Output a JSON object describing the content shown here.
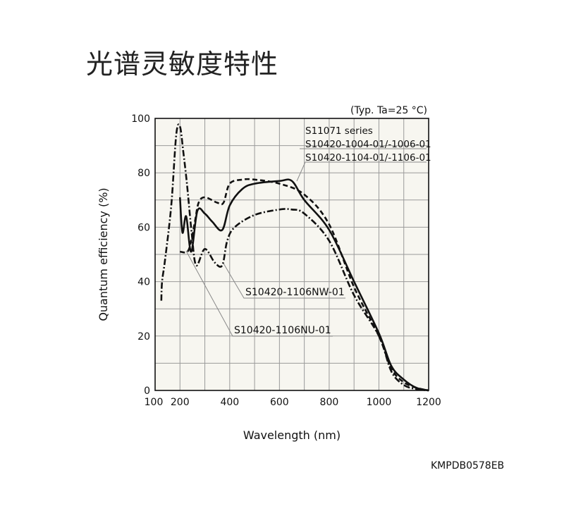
{
  "title": "光谱灵敏度特性",
  "figure_code": "KMPDB0578EB",
  "chart_data": {
    "type": "line",
    "title": "光谱灵敏度特性",
    "condition": "(Typ. Ta=25 °C)",
    "xlabel": "Wavelength (nm)",
    "ylabel": "Quantum efficiency (%)",
    "xlim": [
      100,
      1200
    ],
    "ylim": [
      0,
      100
    ],
    "xticks": [
      100,
      200,
      400,
      600,
      800,
      1000,
      1200
    ],
    "yticks": [
      0,
      20,
      40,
      60,
      80,
      100
    ],
    "grid": true,
    "annotations": {
      "main": [
        "S11071 series",
        "S10420-1004-01/-1006-01",
        "S10420-1104-01/-1106-01"
      ],
      "nw": "S10420-1106NW-01",
      "nu": "S10420-1106NU-01"
    },
    "series": [
      {
        "name": "S11071 series / S10420-1004-01/-1006-01 / S10420-1104-01/-1106-01",
        "style": "solid",
        "x": [
          200,
          210,
          225,
          245,
          270,
          300,
          330,
          370,
          400,
          450,
          500,
          600,
          650,
          700,
          800,
          900,
          1000,
          1050,
          1100,
          1150,
          1200
        ],
        "y": [
          71,
          58,
          64,
          51,
          66,
          65,
          62,
          59,
          68,
          74,
          76,
          77,
          77,
          70,
          59,
          40,
          21,
          9,
          4,
          1,
          0
        ]
      },
      {
        "name": "S10420-1106NU-01",
        "style": "dashed",
        "x": [
          200,
          230,
          245,
          260,
          275,
          300,
          350,
          375,
          400,
          450,
          500,
          600,
          700,
          800,
          900,
          1000,
          1050,
          1100,
          1150,
          1200
        ],
        "y": [
          51,
          51,
          55,
          62,
          69,
          71,
          69,
          69,
          76,
          77.5,
          77.5,
          76,
          72,
          61,
          38,
          20,
          8,
          3,
          1,
          0
        ]
      },
      {
        "name": "S10420-1106NW-01",
        "style": "dashdot",
        "x": [
          125,
          128,
          140,
          165,
          185,
          200,
          213,
          228,
          247,
          265,
          300,
          340,
          370,
          390,
          420,
          500,
          600,
          650,
          700,
          800,
          900,
          1000,
          1050,
          1100,
          1150,
          1200
        ],
        "y": [
          33,
          40,
          48,
          68,
          94,
          97,
          88,
          76,
          58,
          46,
          52,
          47,
          46,
          55,
          60,
          64.5,
          66.5,
          66.5,
          65,
          55,
          35,
          20,
          7,
          2,
          0.5,
          0
        ]
      }
    ]
  }
}
